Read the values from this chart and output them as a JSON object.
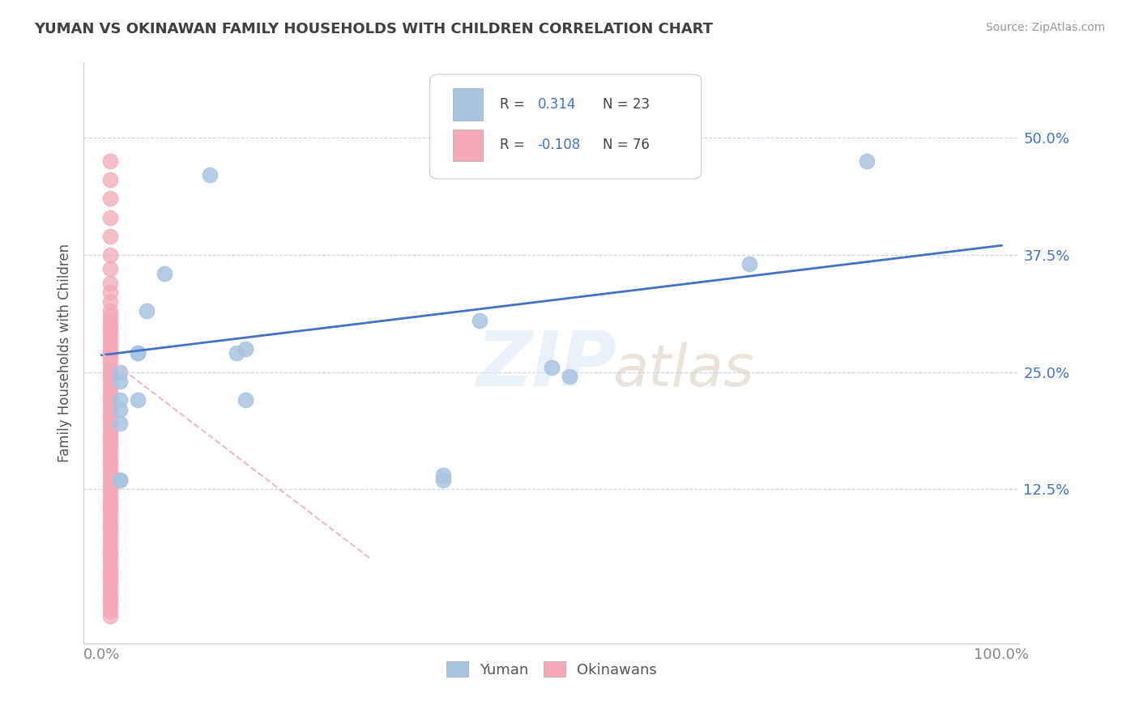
{
  "title": "YUMAN VS OKINAWAN FAMILY HOUSEHOLDS WITH CHILDREN CORRELATION CHART",
  "source": "Source: ZipAtlas.com",
  "ylabel": "Family Households with Children",
  "legend_yuman": "Yuman",
  "legend_okinawan": "Okinawans",
  "yuman_R": "0.314",
  "yuman_N": "23",
  "okinawan_R": "-0.108",
  "okinawan_N": "76",
  "xlim": [
    -0.02,
    1.02
  ],
  "ylim": [
    -0.04,
    0.58
  ],
  "yticks": [
    0.125,
    0.25,
    0.375,
    0.5
  ],
  "ytick_labels": [
    "12.5%",
    "25.0%",
    "37.5%",
    "50.0%"
  ],
  "xticks": [
    0.0,
    1.0
  ],
  "xtick_labels": [
    "0.0%",
    "100.0%"
  ],
  "yuman_color": "#a8c4e0",
  "okinawan_color": "#f4a8b8",
  "yuman_line_color": "#4472c4",
  "okinawan_line_color": "#f0b8c8",
  "background_color": "#ffffff",
  "grid_color": "#c8d4e8",
  "title_color": "#404040",
  "axis_label_color": "#4472c4",
  "yuman_x": [
    0.02,
    0.12,
    0.15,
    0.05,
    0.07,
    0.04,
    0.04,
    0.42,
    0.5,
    0.52,
    0.72,
    0.85,
    0.02,
    0.02,
    0.02,
    0.02,
    0.02,
    0.16,
    0.16,
    0.04,
    0.38,
    0.38,
    0.02
  ],
  "yuman_y": [
    0.135,
    0.46,
    0.27,
    0.315,
    0.355,
    0.27,
    0.22,
    0.305,
    0.255,
    0.245,
    0.365,
    0.475,
    0.22,
    0.195,
    0.135,
    0.21,
    0.24,
    0.275,
    0.22,
    0.27,
    0.135,
    0.14,
    0.25
  ],
  "okinawan_x": [
    0.01,
    0.01,
    0.01,
    0.01,
    0.01,
    0.01,
    0.01,
    0.01,
    0.01,
    0.01,
    0.01,
    0.01,
    0.01,
    0.01,
    0.01,
    0.01,
    0.01,
    0.01,
    0.01,
    0.01,
    0.01,
    0.01,
    0.01,
    0.01,
    0.01,
    0.01,
    0.01,
    0.01,
    0.01,
    0.01,
    0.01,
    0.01,
    0.01,
    0.01,
    0.01,
    0.01,
    0.01,
    0.01,
    0.01,
    0.01,
    0.01,
    0.01,
    0.01,
    0.01,
    0.01,
    0.01,
    0.01,
    0.01,
    0.01,
    0.01,
    0.01,
    0.01,
    0.01,
    0.01,
    0.01,
    0.01,
    0.01,
    0.01,
    0.01,
    0.01,
    0.01,
    0.01,
    0.01,
    0.01,
    0.01,
    0.01,
    0.01,
    0.01,
    0.01,
    0.01,
    0.01,
    0.01,
    0.01,
    0.01,
    0.01,
    0.01
  ],
  "okinawan_y": [
    0.475,
    0.455,
    0.435,
    0.415,
    0.395,
    0.375,
    0.36,
    0.345,
    0.335,
    0.325,
    0.315,
    0.31,
    0.305,
    0.3,
    0.295,
    0.29,
    0.285,
    0.28,
    0.275,
    0.27,
    0.265,
    0.26,
    0.255,
    0.25,
    0.245,
    0.24,
    0.235,
    0.23,
    0.225,
    0.22,
    0.215,
    0.21,
    0.205,
    0.2,
    0.195,
    0.19,
    0.185,
    0.18,
    0.175,
    0.17,
    0.165,
    0.16,
    0.155,
    0.15,
    0.145,
    0.14,
    0.135,
    0.13,
    0.125,
    0.12,
    0.115,
    0.11,
    0.105,
    0.1,
    0.095,
    0.09,
    0.085,
    0.08,
    0.075,
    0.07,
    0.065,
    0.06,
    0.055,
    0.05,
    0.045,
    0.04,
    0.035,
    0.03,
    0.025,
    0.02,
    0.015,
    0.01,
    0.005,
    0.0,
    -0.005,
    -0.01
  ],
  "yuman_line_x": [
    0.0,
    1.0
  ],
  "yuman_line_y": [
    0.268,
    0.385
  ],
  "okinawan_line_x": [
    0.0,
    0.3
  ],
  "okinawan_line_y": [
    0.27,
    0.05
  ]
}
